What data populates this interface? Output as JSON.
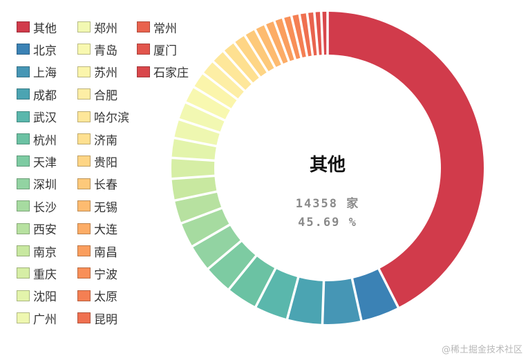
{
  "chart_data": {
    "type": "pie",
    "subtype": "donut",
    "title": "",
    "legend_position": "top-left",
    "center": {
      "label": "其他",
      "count_text": "14358 家",
      "percent_text": "45.69 %"
    },
    "slices": [
      {
        "name": "其他",
        "value": 45.69,
        "color": "#d13b4b"
      },
      {
        "name": "北京",
        "value": 4.3,
        "color": "#3b82b5"
      },
      {
        "name": "上海",
        "value": 4.3,
        "color": "#4696b5"
      },
      {
        "name": "成都",
        "value": 3.9,
        "color": "#4ba4b2"
      },
      {
        "name": "武汉",
        "value": 3.7,
        "color": "#5ab7ac"
      },
      {
        "name": "杭州",
        "value": 3.5,
        "color": "#6bc2a3"
      },
      {
        "name": "天津",
        "value": 3.2,
        "color": "#7dcba2"
      },
      {
        "name": "深圳",
        "value": 3.0,
        "color": "#92d3a2"
      },
      {
        "name": "长沙",
        "value": 2.8,
        "color": "#a6dba0"
      },
      {
        "name": "西安",
        "value": 2.6,
        "color": "#b7e1a0"
      },
      {
        "name": "南京",
        "value": 2.4,
        "color": "#c8e8a0"
      },
      {
        "name": "重庆",
        "value": 2.3,
        "color": "#d6eea5"
      },
      {
        "name": "沈阳",
        "value": 2.2,
        "color": "#e3f4ab"
      },
      {
        "name": "广州",
        "value": 2.1,
        "color": "#eef7b0"
      },
      {
        "name": "郑州",
        "value": 2.0,
        "color": "#f2f8b2"
      },
      {
        "name": "青岛",
        "value": 1.9,
        "color": "#f8f8b0"
      },
      {
        "name": "苏州",
        "value": 1.8,
        "color": "#fbf5ab"
      },
      {
        "name": "合肥",
        "value": 1.7,
        "color": "#fdeea5"
      },
      {
        "name": "哈尔滨",
        "value": 1.6,
        "color": "#fee79a"
      },
      {
        "name": "济南",
        "value": 1.5,
        "color": "#fee090"
      },
      {
        "name": "贵阳",
        "value": 1.4,
        "color": "#fed585"
      },
      {
        "name": "长春",
        "value": 1.3,
        "color": "#fdc97a"
      },
      {
        "name": "无锡",
        "value": 1.2,
        "color": "#fdbb70"
      },
      {
        "name": "大连",
        "value": 1.1,
        "color": "#fcac66"
      },
      {
        "name": "南昌",
        "value": 1.0,
        "color": "#fa9e5e"
      },
      {
        "name": "宁波",
        "value": 0.95,
        "color": "#f88f58"
      },
      {
        "name": "太原",
        "value": 0.9,
        "color": "#f47f53"
      },
      {
        "name": "昆明",
        "value": 0.85,
        "color": "#ef7050"
      },
      {
        "name": "常州",
        "value": 0.8,
        "color": "#e9634e"
      },
      {
        "name": "厦门",
        "value": 0.75,
        "color": "#e2554c"
      },
      {
        "name": "石家庄",
        "value": 0.7,
        "color": "#d9474b"
      }
    ]
  },
  "watermark": "@稀土掘金技术社区"
}
